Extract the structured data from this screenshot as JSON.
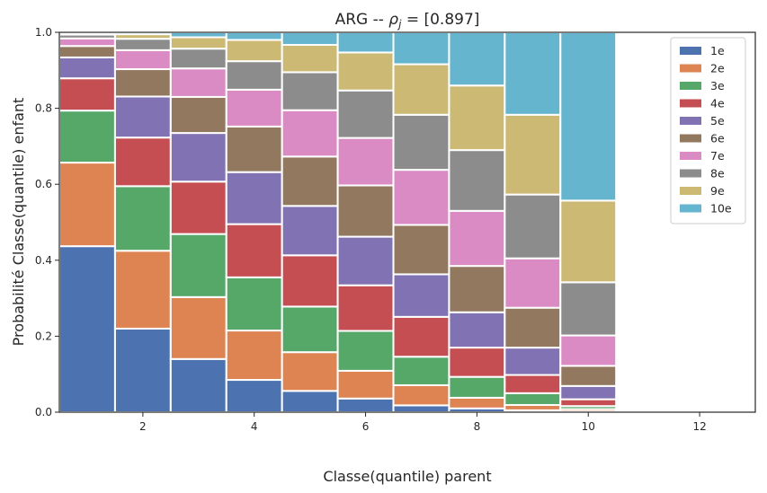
{
  "chart_data": {
    "type": "bar",
    "stacked": true,
    "title": "ARG -- ρj = [0.897]",
    "xlabel": "Classe(quantile) parent",
    "ylabel": "Probabilité Classe(quantile) enfant",
    "xlim": [
      0.5,
      13
    ],
    "ylim": [
      0,
      1.0
    ],
    "xticks": [
      2,
      4,
      6,
      8,
      10,
      12
    ],
    "yticks": [
      0.0,
      0.2,
      0.4,
      0.6,
      0.8,
      1.0
    ],
    "grid": false,
    "legend_position": "top-right",
    "x": [
      1,
      2,
      3,
      4,
      5,
      6,
      7,
      8,
      9,
      10
    ],
    "series": [
      {
        "name": "1e",
        "color": "#4c72b0",
        "values": [
          0.437,
          0.22,
          0.14,
          0.085,
          0.056,
          0.036,
          0.018,
          0.01,
          0.005,
          0.002
        ]
      },
      {
        "name": "2e",
        "color": "#dd8452",
        "values": [
          0.22,
          0.205,
          0.163,
          0.13,
          0.102,
          0.073,
          0.053,
          0.028,
          0.014,
          0.006
        ]
      },
      {
        "name": "3e",
        "color": "#55a868",
        "values": [
          0.137,
          0.17,
          0.166,
          0.14,
          0.12,
          0.105,
          0.075,
          0.055,
          0.031,
          0.008
        ]
      },
      {
        "name": "4e",
        "color": "#c44e52",
        "values": [
          0.085,
          0.128,
          0.138,
          0.14,
          0.135,
          0.12,
          0.105,
          0.077,
          0.048,
          0.018
        ]
      },
      {
        "name": "5e",
        "color": "#8172b3",
        "values": [
          0.055,
          0.108,
          0.128,
          0.137,
          0.13,
          0.128,
          0.112,
          0.093,
          0.072,
          0.035
        ]
      },
      {
        "name": "6e",
        "color": "#937860",
        "values": [
          0.03,
          0.072,
          0.095,
          0.12,
          0.13,
          0.135,
          0.13,
          0.122,
          0.105,
          0.053
        ]
      },
      {
        "name": "7e",
        "color": "#da8bc3",
        "values": [
          0.02,
          0.05,
          0.075,
          0.097,
          0.122,
          0.125,
          0.145,
          0.145,
          0.13,
          0.08
        ]
      },
      {
        "name": "8e",
        "color": "#8c8c8c",
        "values": [
          0.01,
          0.03,
          0.052,
          0.075,
          0.1,
          0.125,
          0.145,
          0.16,
          0.168,
          0.14
        ]
      },
      {
        "name": "9e",
        "color": "#ccb974",
        "values": [
          0.004,
          0.012,
          0.03,
          0.056,
          0.072,
          0.1,
          0.133,
          0.17,
          0.21,
          0.215
        ]
      },
      {
        "name": "10e",
        "color": "#64b5cd",
        "values": [
          0.002,
          0.005,
          0.013,
          0.02,
          0.033,
          0.053,
          0.084,
          0.14,
          0.217,
          0.443
        ]
      }
    ]
  }
}
